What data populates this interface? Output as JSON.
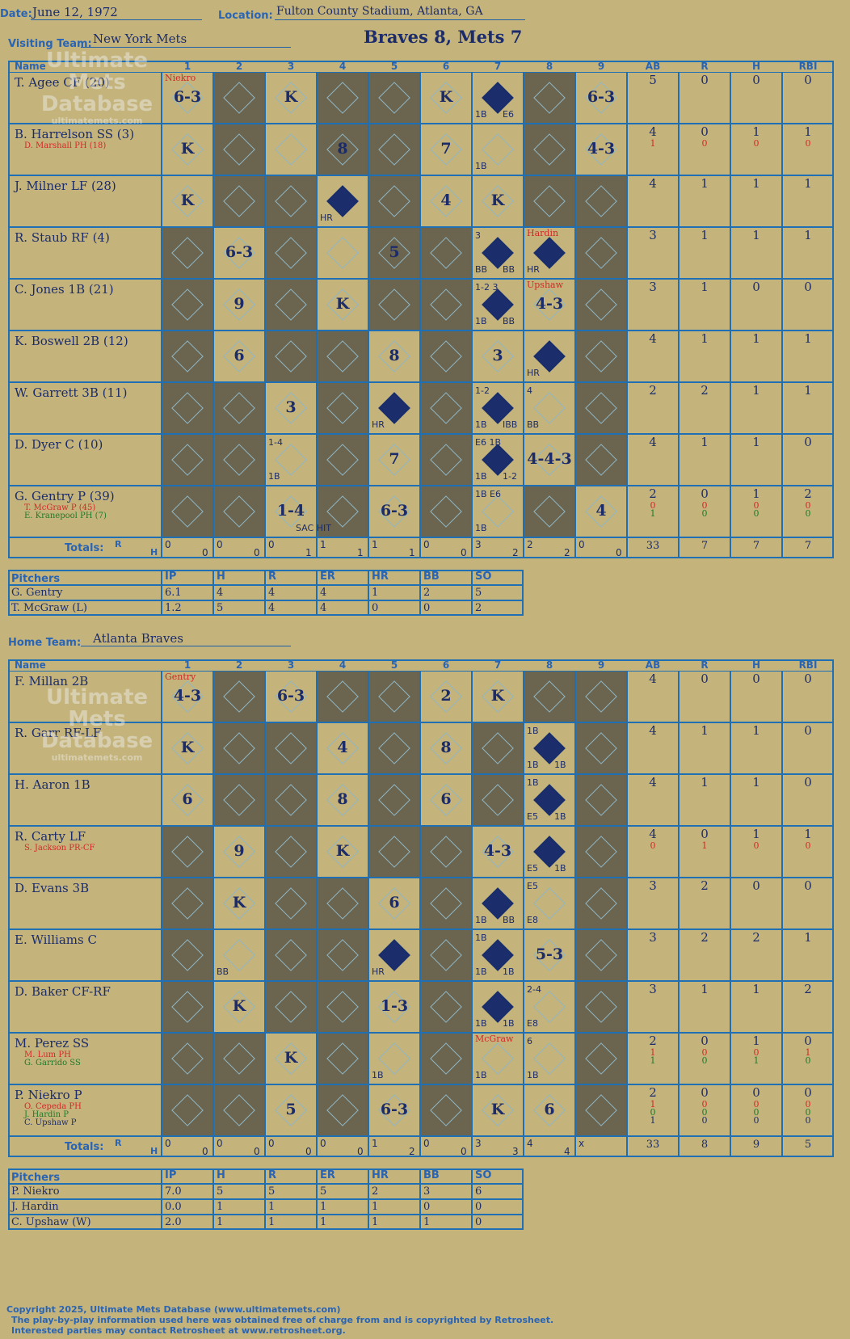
{
  "header": {
    "date_label": "Date:",
    "date": "June 12, 1972",
    "location_label": "Location:",
    "location": "Fulton County Stadium, Atlanta, GA",
    "visiting_label": "Visiting Team:",
    "visiting_team": "New York Mets",
    "home_label": "Home Team:",
    "home_team": "Atlanta Braves",
    "result": "Braves 8, Mets 7"
  },
  "watermark": {
    "line1": "Ultimate",
    "line2": "Mets",
    "line3": "Database",
    "line4": "ultimatemets.com"
  },
  "columns": {
    "name": "Name",
    "innings": [
      "1",
      "2",
      "3",
      "4",
      "5",
      "6",
      "7",
      "8",
      "9"
    ],
    "stats": [
      "AB",
      "R",
      "H",
      "RBI"
    ],
    "totals": "Totals:",
    "r": "R",
    "h": "H"
  },
  "visitors": {
    "players": [
      {
        "name": "T. Agee CF (20)",
        "stats": [
          "5",
          "0",
          "0",
          "0"
        ]
      },
      {
        "name": "B. Harrelson SS (3)",
        "sub1": "D. Marshall PH (18)",
        "stats": [
          "4",
          "0",
          "1",
          "1"
        ],
        "sub1_stats": [
          "1",
          "0",
          "0",
          "0"
        ]
      },
      {
        "name": "J. Milner LF (28)",
        "stats": [
          "4",
          "1",
          "1",
          "1"
        ]
      },
      {
        "name": "R. Staub RF (4)",
        "stats": [
          "3",
          "1",
          "1",
          "1"
        ]
      },
      {
        "name": "C. Jones 1B (21)",
        "stats": [
          "3",
          "1",
          "0",
          "0"
        ]
      },
      {
        "name": "K. Boswell 2B (12)",
        "stats": [
          "4",
          "1",
          "1",
          "1"
        ]
      },
      {
        "name": "W. Garrett 3B (11)",
        "stats": [
          "2",
          "2",
          "1",
          "1"
        ]
      },
      {
        "name": "D. Dyer C (10)",
        "stats": [
          "4",
          "1",
          "1",
          "0"
        ]
      },
      {
        "name": "G. Gentry P (39)",
        "sub1": "T. McGraw P (45)",
        "sub2": "E. Kranepool PH (7)",
        "stats": [
          "2",
          "0",
          "1",
          "2"
        ],
        "sub1_stats": [
          "0",
          "0",
          "0",
          "0"
        ],
        "sub2_stats": [
          "1",
          "0",
          "0",
          "0"
        ]
      }
    ],
    "totals_rh": [
      [
        "0",
        "0"
      ],
      [
        "0",
        "0"
      ],
      [
        "0",
        "1"
      ],
      [
        "1",
        "1"
      ],
      [
        "1",
        "1"
      ],
      [
        "0",
        "0"
      ],
      [
        "3",
        "2"
      ],
      [
        "2",
        "2"
      ],
      [
        "0",
        "0"
      ]
    ],
    "totals": [
      "33",
      "7",
      "7",
      "7"
    ],
    "pitchers": [
      {
        "name": "G. Gentry",
        "vals": [
          "6.1",
          "4",
          "4",
          "4",
          "1",
          "2",
          "5"
        ]
      },
      {
        "name": "T. McGraw (L)",
        "vals": [
          "1.2",
          "5",
          "4",
          "4",
          "0",
          "0",
          "2"
        ]
      }
    ]
  },
  "home": {
    "players": [
      {
        "name": "F. Millan 2B",
        "stats": [
          "4",
          "0",
          "0",
          "0"
        ]
      },
      {
        "name": "R. Garr RF-LF",
        "stats": [
          "4",
          "1",
          "1",
          "0"
        ]
      },
      {
        "name": "H. Aaron 1B",
        "stats": [
          "4",
          "1",
          "1",
          "0"
        ]
      },
      {
        "name": "R. Carty LF",
        "sub1": "S. Jackson PR-CF",
        "stats": [
          "4",
          "0",
          "1",
          "1"
        ],
        "sub1_stats": [
          "0",
          "1",
          "0",
          "0"
        ]
      },
      {
        "name": "D. Evans 3B",
        "stats": [
          "3",
          "2",
          "0",
          "0"
        ]
      },
      {
        "name": "E. Williams C",
        "stats": [
          "3",
          "2",
          "2",
          "1"
        ]
      },
      {
        "name": "D. Baker CF-RF",
        "stats": [
          "3",
          "1",
          "1",
          "2"
        ]
      },
      {
        "name": "M. Perez SS",
        "sub1": "M. Lum PH",
        "sub2": "G. Garrido SS",
        "stats": [
          "2",
          "0",
          "1",
          "0"
        ],
        "sub1_stats": [
          "1",
          "0",
          "0",
          "1"
        ],
        "sub2_stats": [
          "1",
          "0",
          "1",
          "0"
        ]
      },
      {
        "name": "P. Niekro P",
        "sub1": "O. Cepeda PH",
        "sub2": "J. Hardin P",
        "sub3": "C. Upshaw P",
        "stats": [
          "2",
          "0",
          "0",
          "0"
        ],
        "sub1_stats": [
          "1",
          "0",
          "0",
          "0"
        ],
        "sub2_stats": [
          "0",
          "0",
          "0",
          "0"
        ],
        "sub3_stats": [
          "1",
          "0",
          "0",
          "0"
        ]
      }
    ],
    "totals_rh": [
      [
        "0",
        "0"
      ],
      [
        "0",
        "0"
      ],
      [
        "0",
        "0"
      ],
      [
        "0",
        "0"
      ],
      [
        "1",
        "2"
      ],
      [
        "0",
        "0"
      ],
      [
        "3",
        "3"
      ],
      [
        "4",
        "4"
      ],
      [
        "x",
        ""
      ]
    ],
    "totals": [
      "33",
      "8",
      "9",
      "5"
    ],
    "pitchers": [
      {
        "name": "P. Niekro",
        "vals": [
          "7.0",
          "5",
          "5",
          "5",
          "2",
          "3",
          "6"
        ]
      },
      {
        "name": "J. Hardin",
        "vals": [
          "0.0",
          "1",
          "1",
          "1",
          "1",
          "0",
          "0"
        ]
      },
      {
        "name": "C. Upshaw (W)",
        "vals": [
          "2.0",
          "1",
          "1",
          "1",
          "1",
          "1",
          "0"
        ]
      }
    ]
  },
  "pitch_cols": [
    "Pitchers",
    "IP",
    "H",
    "R",
    "ER",
    "HR",
    "BB",
    "SO"
  ],
  "plays": {
    "v": [
      [
        [
          0,
          "6-3"
        ],
        [
          2,
          "K"
        ],
        [
          5,
          "K"
        ],
        [
          6,
          "1B",
          "E6"
        ],
        [
          8,
          "6-3"
        ]
      ],
      [
        [
          0,
          "K"
        ],
        [
          3,
          "8"
        ],
        [
          5,
          "7"
        ],
        [
          6,
          "1B"
        ],
        [
          8,
          "4-3"
        ]
      ],
      [
        [
          0,
          "K"
        ],
        [
          3,
          "HR"
        ],
        [
          5,
          "4"
        ],
        [
          6,
          "K"
        ]
      ],
      [
        [
          1,
          "6-3"
        ],
        [
          4,
          "5"
        ],
        [
          6,
          "BB",
          "BB",
          "3"
        ],
        [
          7,
          "HR"
        ]
      ],
      [
        [
          1,
          "9"
        ],
        [
          3,
          "K"
        ],
        [
          6,
          "1B",
          "BB",
          "1-2 3"
        ],
        [
          7,
          "4-3"
        ]
      ],
      [
        [
          1,
          "6"
        ],
        [
          4,
          "8"
        ],
        [
          6,
          "3"
        ],
        [
          7,
          "HR"
        ]
      ],
      [
        [
          2,
          "3"
        ],
        [
          4,
          "HR"
        ],
        [
          6,
          "1B",
          "IBB",
          "1-2"
        ],
        [
          7,
          "BB",
          "",
          "4"
        ]
      ],
      [
        [
          2,
          "1B",
          "",
          "1-4"
        ],
        [
          4,
          "7"
        ],
        [
          6,
          "1B",
          "1-2",
          "E6 1B"
        ],
        [
          7,
          "4-4-3"
        ]
      ],
      [
        [
          2,
          "1-4",
          "SAC HIT"
        ],
        [
          4,
          "6-3"
        ],
        [
          6,
          "1B",
          "",
          "1B E6"
        ],
        [
          8,
          "4"
        ]
      ]
    ],
    "h": [
      [
        [
          0,
          "4-3"
        ],
        [
          2,
          "6-3"
        ],
        [
          5,
          "2"
        ],
        [
          6,
          "K"
        ]
      ],
      [
        [
          0,
          "K"
        ],
        [
          3,
          "4"
        ],
        [
          5,
          "8"
        ],
        [
          7,
          "1B",
          "1B",
          "1B"
        ]
      ],
      [
        [
          0,
          "6"
        ],
        [
          3,
          "8"
        ],
        [
          5,
          "6"
        ],
        [
          7,
          "E5",
          "1B",
          "1B"
        ]
      ],
      [
        [
          1,
          "9"
        ],
        [
          3,
          "K"
        ],
        [
          6,
          "4-3"
        ],
        [
          7,
          "E5",
          "1B"
        ]
      ],
      [
        [
          1,
          "K"
        ],
        [
          4,
          "6"
        ],
        [
          6,
          "1B",
          "BB"
        ],
        [
          7,
          "E8",
          "",
          "E5"
        ]
      ],
      [
        [
          1,
          "BB"
        ],
        [
          4,
          "HR"
        ],
        [
          6,
          "1B",
          "1B",
          "1B"
        ],
        [
          7,
          "5-3"
        ]
      ],
      [
        [
          1,
          "K"
        ],
        [
          4,
          "1-3"
        ],
        [
          6,
          "1B",
          "1B"
        ],
        [
          7,
          "E8",
          "",
          "2-4"
        ]
      ],
      [
        [
          2,
          "K"
        ],
        [
          4,
          "1B"
        ],
        [
          6,
          "1B"
        ],
        [
          7,
          "1B",
          "",
          "6"
        ]
      ],
      [
        [
          2,
          "5"
        ],
        [
          4,
          "6-3"
        ],
        [
          6,
          "K"
        ],
        [
          7,
          "6"
        ]
      ]
    ],
    "v_pitcher_note": "Niekro",
    "v_staub_note": "Hardin",
    "v_jones_note": "Upshaw",
    "h_pitcher_note": "Gentry",
    "h_perez_note": "McGraw"
  },
  "footer": {
    "line1": "Copyright 2025, Ultimate Mets Database (www.ultimatemets.com)",
    "line2": "The play-by-play information used here was obtained free of charge from and is copyrighted by Retrosheet.",
    "line3": "Interested parties may contact Retrosheet at www.retrosheet.org."
  },
  "colors": {
    "background": "#c4b47c",
    "grid": "#1f6fb5",
    "ink": "#1c2c6a",
    "shade": "#6b6550",
    "red": "#d32828",
    "green": "#1f7a2a"
  }
}
